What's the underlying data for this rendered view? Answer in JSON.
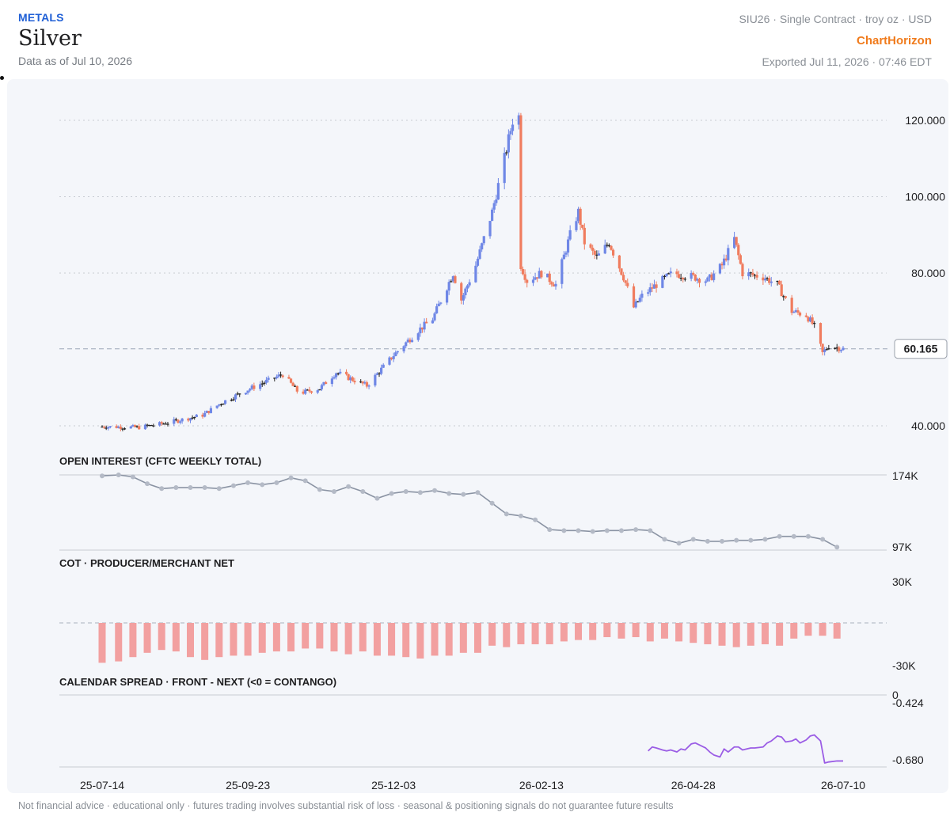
{
  "header": {
    "category": "METALS",
    "title": "Silver",
    "as_of": "Data as of Jul 10, 2026",
    "contract": "SIU26 · Single Contract · troy oz · USD",
    "brand": "ChartHorizon",
    "exported": "Exported Jul 11, 2026 · 07:46 EDT"
  },
  "footer": "Not financial advice · educational only · futures trading involves substantial risk of loss · seasonal & positioning signals do not guarantee future results",
  "colors": {
    "up": "#6f87e6",
    "down": "#f07c5e",
    "oi": "#8a93a3",
    "cot": "#f2a0a0",
    "spread": "#9b5de5",
    "grid": "#c8ccd3"
  },
  "chart_data": [
    {
      "type": "candlestick",
      "title": "",
      "y_ticks": [
        "120.000",
        "100.000",
        "80.000",
        "40.000"
      ],
      "ylim": [
        36,
        125
      ],
      "last_price": "60.165",
      "x_ticks": [
        "25-07-14",
        "25-09-23",
        "25-12-03",
        "26-02-13",
        "26-04-28",
        "26-07-10"
      ],
      "x_range": [
        "2025-07-14",
        "2026-07-10"
      ],
      "close_path": [
        [
          "2025-07-14",
          39.8
        ],
        [
          "2025-08-01",
          39.6
        ],
        [
          "2025-08-15",
          40.8
        ],
        [
          "2025-09-01",
          42.8
        ],
        [
          "2025-09-10",
          46
        ],
        [
          "2025-09-23",
          49.5
        ],
        [
          "2025-10-10",
          53.5
        ],
        [
          "2025-10-18",
          48.5
        ],
        [
          "2025-10-28",
          49.8
        ],
        [
          "2025-11-05",
          54
        ],
        [
          "2025-11-20",
          50.5
        ],
        [
          "2025-12-03",
          58.5
        ],
        [
          "2025-12-15",
          65
        ],
        [
          "2025-12-22",
          68
        ],
        [
          "2026-01-01",
          80
        ],
        [
          "2026-01-05",
          73
        ],
        [
          "2026-01-12",
          82
        ],
        [
          "2026-01-20",
          96
        ],
        [
          "2026-01-26",
          110
        ],
        [
          "2026-01-30",
          120
        ],
        [
          "2026-02-02",
          121
        ],
        [
          "2026-02-03",
          82
        ],
        [
          "2026-02-06",
          78
        ],
        [
          "2026-02-13",
          80
        ],
        [
          "2026-02-20",
          77
        ],
        [
          "2026-02-27",
          90
        ],
        [
          "2026-03-03",
          96
        ],
        [
          "2026-03-06",
          88
        ],
        [
          "2026-03-12",
          84
        ],
        [
          "2026-03-18",
          88
        ],
        [
          "2026-03-25",
          79
        ],
        [
          "2026-03-30",
          71
        ],
        [
          "2026-04-03",
          74
        ],
        [
          "2026-04-10",
          77
        ],
        [
          "2026-04-18",
          80
        ],
        [
          "2026-04-28",
          79
        ],
        [
          "2026-05-05",
          78
        ],
        [
          "2026-05-12",
          82
        ],
        [
          "2026-05-18",
          89
        ],
        [
          "2026-05-22",
          80
        ],
        [
          "2026-06-01",
          79
        ],
        [
          "2026-06-08",
          77
        ],
        [
          "2026-06-15",
          70
        ],
        [
          "2026-06-22",
          69
        ],
        [
          "2026-06-26",
          66
        ],
        [
          "2026-06-30",
          59
        ],
        [
          "2026-07-03",
          61
        ],
        [
          "2026-07-10",
          60.165
        ]
      ]
    },
    {
      "type": "line",
      "title": "OPEN INTEREST (CFTC WEEKLY TOTAL)",
      "y_ticks": [
        "174K",
        "97K"
      ],
      "ylim": [
        97,
        174
      ],
      "x": [
        "2025-07-14",
        "2025-07-22",
        "2025-07-29",
        "2025-08-05",
        "2025-08-12",
        "2025-08-19",
        "2025-08-26",
        "2025-09-02",
        "2025-09-09",
        "2025-09-16",
        "2025-09-23",
        "2025-09-30",
        "2025-10-07",
        "2025-10-14",
        "2025-10-21",
        "2025-10-28",
        "2025-11-04",
        "2025-11-11",
        "2025-11-18",
        "2025-11-25",
        "2025-12-02",
        "2025-12-09",
        "2025-12-16",
        "2025-12-23",
        "2025-12-30",
        "2026-01-06",
        "2026-01-13",
        "2026-01-20",
        "2026-01-27",
        "2026-02-03",
        "2026-02-10",
        "2026-02-17",
        "2026-02-24",
        "2026-03-03",
        "2026-03-10",
        "2026-03-17",
        "2026-03-24",
        "2026-03-31",
        "2026-04-07",
        "2026-04-14",
        "2026-04-21",
        "2026-04-28",
        "2026-05-05",
        "2026-05-12",
        "2026-05-19",
        "2026-05-26",
        "2026-06-02",
        "2026-06-09",
        "2026-06-16",
        "2026-06-23",
        "2026-06-30",
        "2026-07-07"
      ],
      "values": [
        173,
        174,
        172,
        165,
        160,
        161,
        161,
        161,
        160,
        163,
        166,
        164,
        166,
        171,
        168,
        159,
        157,
        162,
        157,
        150,
        155,
        157,
        156,
        158,
        155,
        154,
        156,
        145,
        134,
        132,
        128,
        118,
        117,
        117,
        116,
        117,
        117,
        118,
        117,
        108,
        104,
        108,
        106,
        106,
        107,
        107,
        108,
        111,
        111,
        111,
        108,
        100
      ]
    },
    {
      "type": "bar",
      "title": "COT · PRODUCER/MERCHANT NET",
      "y_ticks": [
        "30K",
        "-30K"
      ],
      "ylim": [
        -30,
        30
      ],
      "x": [
        "2025-07-14",
        "2025-07-22",
        "2025-07-29",
        "2025-08-05",
        "2025-08-12",
        "2025-08-19",
        "2025-08-26",
        "2025-09-02",
        "2025-09-09",
        "2025-09-16",
        "2025-09-23",
        "2025-09-30",
        "2025-10-07",
        "2025-10-14",
        "2025-10-21",
        "2025-10-28",
        "2025-11-04",
        "2025-11-11",
        "2025-11-18",
        "2025-11-25",
        "2025-12-02",
        "2025-12-09",
        "2025-12-16",
        "2025-12-23",
        "2025-12-30",
        "2026-01-06",
        "2026-01-13",
        "2026-01-20",
        "2026-01-27",
        "2026-02-03",
        "2026-02-10",
        "2026-02-17",
        "2026-02-24",
        "2026-03-03",
        "2026-03-10",
        "2026-03-17",
        "2026-03-24",
        "2026-03-31",
        "2026-04-07",
        "2026-04-14",
        "2026-04-21",
        "2026-04-28",
        "2026-05-05",
        "2026-05-12",
        "2026-05-19",
        "2026-05-26",
        "2026-06-02",
        "2026-06-09",
        "2026-06-16",
        "2026-06-23",
        "2026-06-30",
        "2026-07-07"
      ],
      "values": [
        -28,
        -27,
        -24,
        -21,
        -19,
        -20,
        -24,
        -26,
        -24,
        -23,
        -23,
        -21,
        -20,
        -20,
        -18,
        -18,
        -20,
        -22,
        -20,
        -23,
        -23,
        -24,
        -25,
        -23,
        -23,
        -21,
        -21,
        -16,
        -17,
        -15,
        -15,
        -15,
        -13,
        -12,
        -12,
        -10,
        -11,
        -10,
        -13,
        -11,
        -13,
        -14,
        -15,
        -16,
        -17,
        -16,
        -15,
        -16,
        -11,
        -9,
        -9,
        -11
      ]
    },
    {
      "type": "line",
      "title": "CALENDAR SPREAD · FRONT - NEXT (<0 = CONTANGO)",
      "y_ticks": [
        "0",
        "-0.424",
        "-0.680"
      ],
      "ylim": [
        -0.72,
        0
      ],
      "x": [
        "2026-04-06",
        "2026-04-08",
        "2026-04-10",
        "2026-04-13",
        "2026-04-15",
        "2026-04-17",
        "2026-04-20",
        "2026-04-22",
        "2026-04-24",
        "2026-04-27",
        "2026-04-29",
        "2026-05-01",
        "2026-05-04",
        "2026-05-06",
        "2026-05-08",
        "2026-05-11",
        "2026-05-13",
        "2026-05-15",
        "2026-05-18",
        "2026-05-20",
        "2026-05-22",
        "2026-05-26",
        "2026-05-28",
        "2026-06-01",
        "2026-06-03",
        "2026-06-05",
        "2026-06-08",
        "2026-06-10",
        "2026-06-12",
        "2026-06-15",
        "2026-06-17",
        "2026-06-19",
        "2026-06-22",
        "2026-06-24",
        "2026-06-26",
        "2026-06-29",
        "2026-07-01",
        "2026-07-03",
        "2026-07-07",
        "2026-07-10"
      ],
      "values": [
        -0.56,
        -0.52,
        -0.53,
        -0.55,
        -0.56,
        -0.55,
        -0.57,
        -0.54,
        -0.55,
        -0.49,
        -0.48,
        -0.5,
        -0.53,
        -0.57,
        -0.6,
        -0.62,
        -0.54,
        -0.57,
        -0.52,
        -0.52,
        -0.55,
        -0.53,
        -0.53,
        -0.52,
        -0.48,
        -0.46,
        -0.41,
        -0.42,
        -0.47,
        -0.46,
        -0.44,
        -0.48,
        -0.45,
        -0.41,
        -0.4,
        -0.46,
        -0.68,
        -0.67,
        -0.66,
        -0.66
      ]
    }
  ]
}
